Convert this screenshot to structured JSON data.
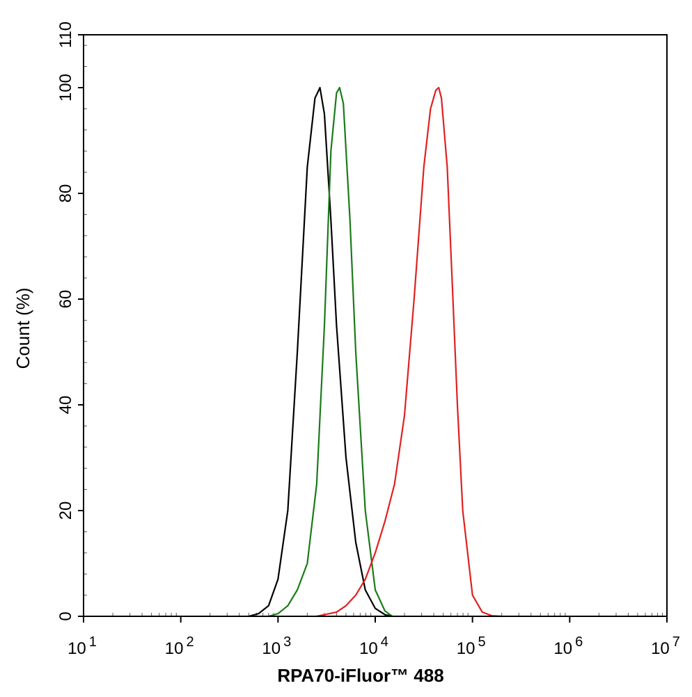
{
  "chart_data": {
    "type": "line",
    "title": "",
    "xlabel": "RPA70-iFluor™ 488",
    "ylabel": "Count  (%)",
    "x_scale": "log",
    "xlim": [
      10,
      10000000
    ],
    "ylim": [
      0,
      110
    ],
    "x_ticks": [
      {
        "value": 10,
        "base": "10",
        "exp": "1"
      },
      {
        "value": 100,
        "base": "10",
        "exp": "2"
      },
      {
        "value": 1000,
        "base": "10",
        "exp": "3"
      },
      {
        "value": 10000,
        "base": "10",
        "exp": "4"
      },
      {
        "value": 100000,
        "base": "10",
        "exp": "5"
      },
      {
        "value": 1000000,
        "base": "10",
        "exp": "6"
      },
      {
        "value": 10000000,
        "base": "10",
        "exp": "7"
      }
    ],
    "y_ticks": [
      {
        "value": 0,
        "label": "0"
      },
      {
        "value": 20,
        "label": "20"
      },
      {
        "value": 40,
        "label": "40"
      },
      {
        "value": 60,
        "label": "60"
      },
      {
        "value": 80,
        "label": "80"
      },
      {
        "value": 100,
        "label": "100"
      },
      {
        "value": 110,
        "label": "110"
      }
    ],
    "grid": false,
    "legend": "none",
    "series": [
      {
        "color": "#000000",
        "x": [
          500,
          630,
          800,
          1000,
          1260,
          1580,
          2000,
          2400,
          2700,
          3000,
          3500,
          4000,
          5000,
          6300,
          7900,
          10000,
          12600,
          15000
        ],
        "y": [
          0,
          0.5,
          2,
          7,
          20,
          50,
          85,
          98,
          100,
          95,
          75,
          55,
          30,
          14,
          5,
          1.5,
          0.3,
          0
        ]
      },
      {
        "color": "#1a7a1a",
        "x": [
          800,
          1000,
          1260,
          1580,
          2000,
          2500,
          3000,
          3500,
          4000,
          4300,
          4700,
          5500,
          6300,
          7900,
          10000,
          12600,
          15000
        ],
        "y": [
          0,
          0.5,
          2,
          5,
          10,
          25,
          55,
          88,
          99,
          100,
          97,
          75,
          50,
          20,
          5,
          1,
          0
        ]
      },
      {
        "color": "#e02020",
        "x": [
          2500,
          3000,
          4000,
          5000,
          6300,
          7900,
          10000,
          12600,
          15800,
          20000,
          25100,
          31600,
          37000,
          42000,
          45000,
          48000,
          55000,
          63000,
          70000,
          79400,
          100000,
          126000,
          158000,
          200000
        ],
        "y": [
          0,
          0.3,
          0.8,
          2,
          4,
          7,
          12,
          18,
          25,
          38,
          60,
          85,
          96,
          99.5,
          100,
          98,
          85,
          60,
          40,
          20,
          4,
          0.8,
          0.1,
          0
        ]
      }
    ]
  }
}
